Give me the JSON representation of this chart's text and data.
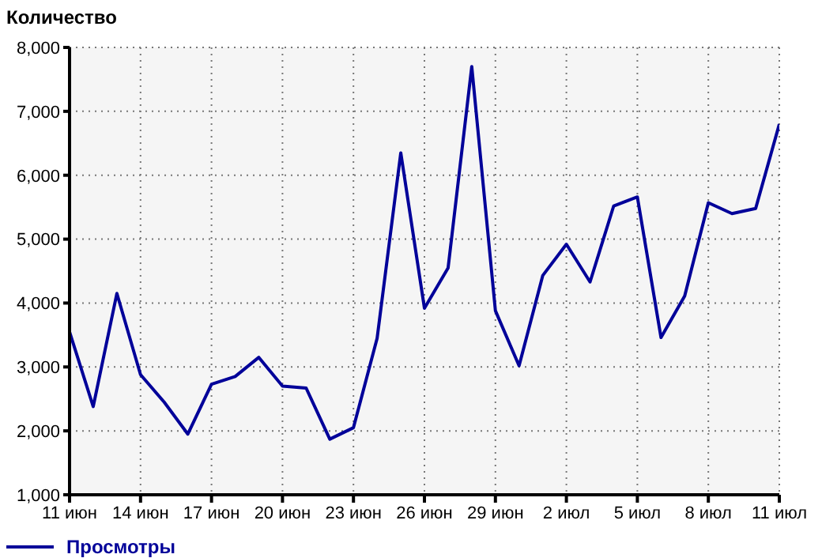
{
  "chart_data": {
    "type": "line",
    "ylabel": "Количество",
    "x": [
      "--06-11",
      "--06-12",
      "--06-13",
      "--06-14",
      "--06-15",
      "--06-16",
      "--06-17",
      "--06-18",
      "--06-19",
      "--06-20",
      "--06-21",
      "--06-22",
      "--06-23",
      "--06-24",
      "--06-25",
      "--06-26",
      "--06-27",
      "--06-28",
      "--06-29",
      "--06-30",
      "--07-01",
      "--07-02",
      "--07-03",
      "--07-04",
      "--07-05",
      "--07-06",
      "--07-07",
      "--07-08",
      "--07-09",
      "--07-10",
      "--07-11"
    ],
    "series": [
      {
        "name": "Просмотры",
        "color": "#000099",
        "values": [
          3550,
          2380,
          4150,
          2880,
          2450,
          1950,
          2730,
          2850,
          3150,
          2700,
          2670,
          1870,
          2050,
          3450,
          6350,
          3920,
          4550,
          7700,
          3880,
          3020,
          4430,
          4920,
          4330,
          5520,
          5660,
          3460,
          4110,
          5570,
          5400,
          5480,
          6800
        ]
      }
    ],
    "xlim": [
      "--06-11",
      "--07-11"
    ],
    "xticks": [
      {
        "value": "--06-11",
        "label": "11 июн"
      },
      {
        "value": "--06-14",
        "label": "14 июн"
      },
      {
        "value": "--06-17",
        "label": "17 июн"
      },
      {
        "value": "--06-20",
        "label": "20 июн"
      },
      {
        "value": "--06-23",
        "label": "23 июн"
      },
      {
        "value": "--06-26",
        "label": "26 июн"
      },
      {
        "value": "--06-29",
        "label": "29 июн"
      },
      {
        "value": "--07-02",
        "label": "2 июл"
      },
      {
        "value": "--07-05",
        "label": "5 июл"
      },
      {
        "value": "--07-08",
        "label": "8 июл"
      },
      {
        "value": "--07-11",
        "label": "11 июл"
      }
    ],
    "ylim": [
      1000,
      8000
    ],
    "yticks": [
      {
        "value": 1000,
        "label": "1,000"
      },
      {
        "value": 2000,
        "label": "2,000"
      },
      {
        "value": 3000,
        "label": "3,000"
      },
      {
        "value": 4000,
        "label": "4,000"
      },
      {
        "value": 5000,
        "label": "5,000"
      },
      {
        "value": 6000,
        "label": "6,000"
      },
      {
        "value": 7000,
        "label": "7,000"
      },
      {
        "value": 8000,
        "label": "8,000"
      }
    ],
    "grid": true,
    "legend": "bottom left",
    "marker": "none",
    "line_style": "solid"
  }
}
